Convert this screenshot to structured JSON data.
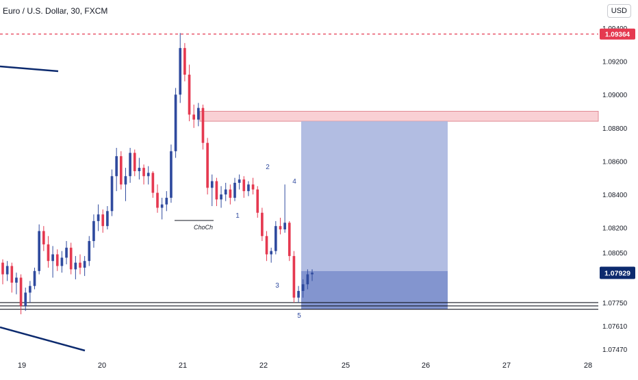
{
  "header": {
    "title": "Euro / U.S. Dollar, 30, FXCM",
    "currency_button": "USD"
  },
  "colors": {
    "up": "#2f4a9e",
    "down": "#e53950",
    "resistance_line": "#e53950",
    "zone_fill": "#f8c8cc",
    "zone_border": "#e08a94",
    "target_fill": "#aeb9e0",
    "stop_fill": "#7c8fcc",
    "current_price_bg": "#0c2a6e",
    "trend_line": "#0c2a6e",
    "label_text": "#2f4a9e"
  },
  "chart_data": {
    "type": "candlestick",
    "symbol": "Euro / U.S. Dollar",
    "timeframe": "30",
    "source": "FXCM",
    "x_tick_labels": [
      "19",
      "20",
      "21",
      "22",
      "25",
      "26",
      "27",
      "28"
    ],
    "y_tick_labels": [
      "1.09400",
      "1.09200",
      "1.09000",
      "1.08800",
      "1.08600",
      "1.08400",
      "1.08200",
      "1.08050",
      "1.07750",
      "1.07610",
      "1.07470"
    ],
    "price_labels": {
      "resistance": "1.09364",
      "current": "1.07929"
    },
    "annotations": {
      "choch": "ChoCh",
      "wave_labels": [
        "1",
        "2",
        "3",
        "4",
        "5"
      ]
    },
    "sell_zone": {
      "low": 1.0884,
      "high": 1.089
    },
    "position": {
      "entry": 1.0794,
      "target": 1.0771,
      "stop": 1.0884
    },
    "support_lines": [
      1.0775,
      1.0773,
      1.0771
    ],
    "ohlc_approx": [
      [
        1.0799,
        1.0801,
        1.0786,
        1.0792
      ],
      [
        1.0792,
        1.08,
        1.0788,
        1.0797
      ],
      [
        1.0797,
        1.0799,
        1.0781,
        1.0787
      ],
      [
        1.0787,
        1.0793,
        1.078,
        1.079
      ],
      [
        1.079,
        1.0792,
        1.0768,
        1.0773
      ],
      [
        1.0773,
        1.0784,
        1.077,
        1.0781
      ],
      [
        1.0781,
        1.0788,
        1.0775,
        1.0785
      ],
      [
        1.0785,
        1.0796,
        1.0783,
        1.0794
      ],
      [
        1.0794,
        1.0822,
        1.0792,
        1.0818
      ],
      [
        1.0818,
        1.0821,
        1.0806,
        1.081
      ],
      [
        1.081,
        1.0815,
        1.0796,
        1.08
      ],
      [
        1.08,
        1.0809,
        1.079,
        1.0804
      ],
      [
        1.0804,
        1.0807,
        1.0794,
        1.0797
      ],
      [
        1.0797,
        1.0806,
        1.0793,
        1.0802
      ],
      [
        1.0802,
        1.0812,
        1.0798,
        1.0808
      ],
      [
        1.0808,
        1.0811,
        1.0792,
        1.0795
      ],
      [
        1.0795,
        1.0803,
        1.0789,
        1.0799
      ],
      [
        1.0799,
        1.0804,
        1.0792,
        1.0796
      ],
      [
        1.0796,
        1.0803,
        1.0791,
        1.08
      ],
      [
        1.08,
        1.0815,
        1.0797,
        1.0812
      ],
      [
        1.0812,
        1.0828,
        1.0808,
        1.0824
      ],
      [
        1.0824,
        1.0834,
        1.0818,
        1.0828
      ],
      [
        1.0828,
        1.0831,
        1.0817,
        1.0821
      ],
      [
        1.0821,
        1.0833,
        1.0819,
        1.083
      ],
      [
        1.083,
        1.0855,
        1.0827,
        1.0851
      ],
      [
        1.0851,
        1.0868,
        1.0842,
        1.0863
      ],
      [
        1.0863,
        1.0866,
        1.0843,
        1.0846
      ],
      [
        1.0846,
        1.0856,
        1.0836,
        1.0851
      ],
      [
        1.0851,
        1.0868,
        1.0847,
        1.0865
      ],
      [
        1.0865,
        1.0867,
        1.0851,
        1.0854
      ],
      [
        1.0854,
        1.0862,
        1.0849,
        1.0856
      ],
      [
        1.0856,
        1.0858,
        1.0846,
        1.0851
      ],
      [
        1.0851,
        1.0857,
        1.0846,
        1.0853
      ],
      [
        1.0853,
        1.0854,
        1.0838,
        1.0841
      ],
      [
        1.0841,
        1.0846,
        1.0829,
        1.0832
      ],
      [
        1.0832,
        1.0838,
        1.0825,
        1.0834
      ],
      [
        1.0834,
        1.0842,
        1.083,
        1.0838
      ],
      [
        1.0838,
        1.087,
        1.0835,
        1.0866
      ],
      [
        1.0866,
        1.0904,
        1.0862,
        1.09
      ],
      [
        1.09,
        1.0937,
        1.0895,
        1.0928
      ],
      [
        1.0928,
        1.0931,
        1.0908,
        1.0912
      ],
      [
        1.0912,
        1.0918,
        1.0884,
        1.0888
      ],
      [
        1.0888,
        1.0894,
        1.088,
        1.0885
      ],
      [
        1.0885,
        1.0895,
        1.0881,
        1.0892
      ],
      [
        1.0892,
        1.0894,
        1.0867,
        1.0871
      ],
      [
        1.0871,
        1.0874,
        1.084,
        1.0844
      ],
      [
        1.0844,
        1.0852,
        1.0833,
        1.0848
      ],
      [
        1.0848,
        1.085,
        1.0833,
        1.0837
      ],
      [
        1.0837,
        1.0845,
        1.0832,
        1.084
      ],
      [
        1.084,
        1.0847,
        1.0836,
        1.0843
      ],
      [
        1.0843,
        1.0846,
        1.0834,
        1.0838
      ],
      [
        1.0838,
        1.085,
        1.0836,
        1.0847
      ],
      [
        1.0847,
        1.0852,
        1.0843,
        1.0849
      ],
      [
        1.0849,
        1.0851,
        1.0838,
        1.0842
      ],
      [
        1.0842,
        1.0848,
        1.0839,
        1.0846
      ],
      [
        1.0846,
        1.085,
        1.084,
        1.0843
      ],
      [
        1.0843,
        1.0845,
        1.0826,
        1.0829
      ],
      [
        1.0829,
        1.0832,
        1.0812,
        1.0815
      ],
      [
        1.0815,
        1.0818,
        1.08,
        1.0804
      ],
      [
        1.0804,
        1.0808,
        1.0799,
        1.0806
      ],
      [
        1.0806,
        1.0824,
        1.0804,
        1.0821
      ],
      [
        1.0821,
        1.0826,
        1.0816,
        1.0819
      ],
      [
        1.0819,
        1.0846,
        1.0817,
        1.0823
      ],
      [
        1.0823,
        1.0824,
        1.08,
        1.0803
      ],
      [
        1.0803,
        1.0806,
        1.0775,
        1.0778
      ],
      [
        1.0778,
        1.0785,
        1.0775,
        1.0782
      ],
      [
        1.0782,
        1.0789,
        1.0778,
        1.0786
      ],
      [
        1.0786,
        1.0795,
        1.0783,
        1.0792
      ],
      [
        1.0792,
        1.0795,
        1.0788,
        1.0793
      ]
    ]
  }
}
